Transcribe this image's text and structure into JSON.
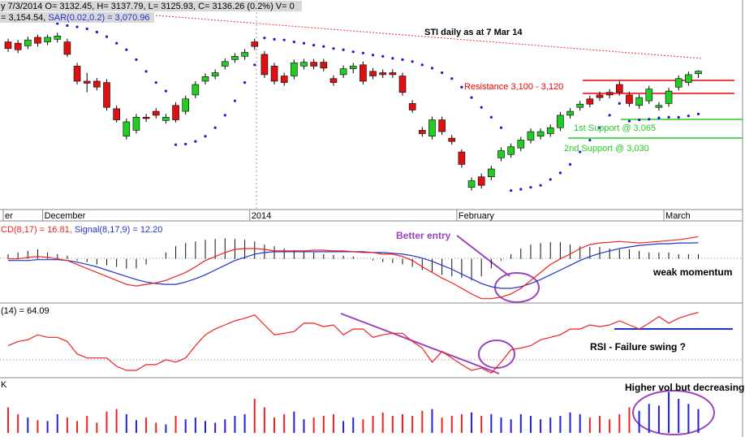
{
  "chart_data": {
    "type": "candlestick",
    "header": {
      "quote": "y 7/3/2014 O= 3132.45, H= 3137.79, L= 3125.93, C= 3136.26 (0.2%) V= 0",
      "ma": "= 3,154.54, ",
      "sar": "SAR(0.02,0.2) = 3,070.96"
    },
    "title": "STI daily as at 7 Mar 14",
    "annotations": {
      "resistance": "Resistance 3,100 - 3,120",
      "support1": "1st Support @ 3,065",
      "support2": "2nd Support @ 3,030",
      "better_entry": "Better entry",
      "weak_momentum": "weak momentum",
      "rsi_note": "RSI - Failure swing ?",
      "volume_note": "Higher vol but decreasing"
    },
    "categories": [
      "er",
      null,
      null,
      null,
      "December",
      null,
      null,
      null,
      null,
      null,
      null,
      null,
      null,
      null,
      null,
      null,
      null,
      null,
      null,
      null,
      null,
      null,
      null,
      null,
      null,
      "2014",
      null,
      null,
      null,
      null,
      null,
      null,
      null,
      null,
      null,
      null,
      null,
      null,
      null,
      null,
      null,
      null,
      null,
      null,
      null,
      null,
      "February",
      null,
      null,
      null,
      null,
      null,
      null,
      null,
      null,
      null,
      null,
      null,
      null,
      null,
      null,
      null,
      null,
      null,
      null,
      null,
      null,
      "March",
      null,
      null,
      null
    ],
    "open": [
      3181,
      3179,
      3175,
      3188,
      3181,
      3185,
      3181,
      3144,
      3121,
      3121,
      3119,
      3079,
      3037,
      3046,
      3066,
      3075,
      3061,
      3084,
      3075,
      3100,
      3121,
      3129,
      3144,
      3154,
      3159,
      3181,
      3162,
      3144,
      3129,
      3129,
      3144,
      3150,
      3150,
      3125,
      3131,
      3140,
      3146,
      3136,
      3134,
      3134,
      3129,
      3087,
      3046,
      3037,
      3062,
      3034,
      3013,
      2959,
      2975,
      2975,
      3004,
      3009,
      3019,
      3031,
      3037,
      3041,
      3050,
      3069,
      3081,
      3094,
      3100,
      3104,
      3116,
      3100,
      3084,
      3091,
      3081,
      3087,
      3112,
      3119,
      3132.45
    ],
    "high": [
      3186,
      3184,
      3189,
      3192,
      3192,
      3195,
      3186,
      3149,
      3134,
      3126,
      3124,
      3084,
      3064,
      3071,
      3071,
      3080,
      3071,
      3089,
      3099,
      3121,
      3133,
      3139,
      3156,
      3164,
      3170,
      3186,
      3167,
      3149,
      3134,
      3154,
      3155,
      3155,
      3155,
      3130,
      3145,
      3149,
      3151,
      3141,
      3139,
      3139,
      3134,
      3092,
      3051,
      3067,
      3067,
      3039,
      3017,
      2974,
      2980,
      2992,
      3020,
      3026,
      3036,
      3049,
      3049,
      3055,
      3074,
      3080,
      3091,
      3099,
      3105,
      3109,
      3121,
      3105,
      3101,
      3114,
      3089,
      3111,
      3130,
      3136,
      3137.79
    ],
    "low": [
      3166,
      3164,
      3170,
      3174,
      3176,
      3180,
      3158,
      3116,
      3104,
      3107,
      3076,
      3058,
      3032,
      3041,
      3059,
      3064,
      3056,
      3058,
      3070,
      3095,
      3116,
      3124,
      3139,
      3149,
      3154,
      3169,
      3126,
      3116,
      3114,
      3124,
      3139,
      3139,
      3136,
      3114,
      3126,
      3133,
      3116,
      3124,
      3126,
      3126,
      3099,
      3073,
      3036,
      3032,
      3039,
      3024,
      2989,
      2954,
      2957,
      2970,
      2999,
      3004,
      3014,
      3026,
      3032,
      3036,
      3045,
      3064,
      3076,
      3081,
      3091,
      3095,
      3099,
      3082,
      3079,
      3086,
      3076,
      3082,
      3107,
      3114,
      3125.93
    ],
    "close": [
      3171,
      3169,
      3184,
      3179,
      3188,
      3190,
      3162,
      3121,
      3118,
      3112,
      3081,
      3062,
      3059,
      3066,
      3064,
      3069,
      3066,
      3062,
      3094,
      3116,
      3128,
      3134,
      3151,
      3159,
      3165,
      3174,
      3131,
      3121,
      3119,
      3149,
      3150,
      3144,
      3141,
      3119,
      3140,
      3144,
      3121,
      3129,
      3131,
      3131,
      3104,
      3077,
      3041,
      3062,
      3044,
      3029,
      2994,
      2969,
      2962,
      2987,
      3015,
      3021,
      3031,
      3044,
      3044,
      3050,
      3069,
      3075,
      3086,
      3086,
      3096,
      3100,
      3104,
      3087,
      3096,
      3109,
      3084,
      3106,
      3125,
      3131,
      3136.26
    ],
    "sar": [
      null,
      null,
      null,
      null,
      null,
      3209,
      3206,
      3204,
      3201,
      3196,
      3189,
      3179,
      3169,
      3154,
      3136,
      3119,
      3106,
      3024,
      3025,
      3029,
      3037,
      3050,
      3069,
      3091,
      3119,
      3146,
      3187,
      3185,
      3184,
      3181,
      3179,
      3176,
      3174,
      3171,
      3169,
      3166,
      3164,
      3161,
      3159,
      3156,
      3154,
      3151,
      3146,
      3141,
      3134,
      3125,
      3112,
      3096,
      3081,
      3066,
      3050,
      2954,
      2956,
      2959,
      2962,
      2971,
      2981,
      2994,
      3013,
      3031,
      3050,
      3069,
      3087,
      3060,
      3062,
      3063,
      3065,
      3066,
      3066,
      3068,
      3070.96
    ],
    "up_color": "#22cc22",
    "down_color": "#dd1111",
    "sar_color": "#1a1acc",
    "ylim": [
      2925,
      3245
    ],
    "macd": {
      "header": "CD(8,17) = 16.81, ",
      "signal_header": "Signal(8,17,9) = 12.20",
      "values": [
        0,
        0,
        1.2,
        1.8,
        1.2,
        0,
        -1.2,
        -4.2,
        -7.2,
        -10.2,
        -13.2,
        -16.2,
        -19.2,
        -20.4,
        -19.2,
        -18,
        -16.2,
        -13.2,
        -10.2,
        -6,
        -1.2,
        1.8,
        4.8,
        7.2,
        7.8,
        7.8,
        7.2,
        6,
        6,
        6,
        6,
        6.6,
        6.6,
        6,
        6,
        5.4,
        4.8,
        4.8,
        3.6,
        3.6,
        1.8,
        -1.2,
        -6,
        -10.2,
        -14.4,
        -18,
        -22.2,
        -26.4,
        -30,
        -30,
        -28.8,
        -26.4,
        -22.2,
        -16.2,
        -10.2,
        -4.2,
        0,
        3.6,
        7.8,
        10.8,
        12,
        12.6,
        13.2,
        12.6,
        12,
        12.6,
        13.2,
        13.8,
        14.4,
        15.6,
        16.81
      ],
      "signal": [
        -1.2,
        -1.2,
        -1.2,
        -0.6,
        -0.6,
        -0.6,
        -1.2,
        -2.4,
        -4.2,
        -6,
        -8.4,
        -10.8,
        -13.2,
        -15.6,
        -17.4,
        -18.6,
        -19.2,
        -19.2,
        -17.4,
        -15,
        -12,
        -8.4,
        -4.8,
        -1.2,
        1.2,
        3.6,
        4.8,
        5.4,
        5.4,
        5.4,
        5.4,
        5.4,
        5.4,
        5.4,
        5.4,
        5.4,
        5.4,
        4.8,
        4.8,
        4.2,
        3.6,
        2.4,
        0.6,
        -1.8,
        -4.8,
        -7.8,
        -11.4,
        -15,
        -18.6,
        -21,
        -22.2,
        -22.2,
        -21,
        -18.6,
        -15.6,
        -12,
        -8.4,
        -4.8,
        -1.2,
        1.8,
        4.2,
        6,
        7.8,
        9,
        10.2,
        10.8,
        11.4,
        11.4,
        12,
        12,
        12.2
      ],
      "histogram": [
        3.6,
        4.8,
        6,
        7.2,
        4.8,
        3.6,
        2.4,
        -1.2,
        -2.4,
        -4.2,
        -4.8,
        -6,
        -7.2,
        -7.2,
        -4.2,
        0,
        4.8,
        9.6,
        12,
        13.2,
        14.4,
        15,
        15.6,
        15,
        14.4,
        13.2,
        10.8,
        9.6,
        7.8,
        6.6,
        6,
        4.8,
        3.6,
        3,
        2.4,
        1.8,
        0,
        -1.2,
        -2.4,
        -3,
        -4.2,
        -6,
        -8.4,
        -10.2,
        -12,
        -13.2,
        -14.4,
        -16.2,
        -13.2,
        -7.2,
        -1.2,
        3.6,
        7.8,
        10.8,
        12,
        12.6,
        12.6,
        10.8,
        9.6,
        9,
        9,
        7.8,
        7.2,
        7.2,
        6,
        4.8,
        4.8,
        4.8,
        3.6,
        3.6,
        3.6
      ],
      "color": "#ee2222",
      "signal_color": "#2233cc",
      "histogram_color": "#111111",
      "ylim": [
        -32,
        28
      ]
    },
    "rsi": {
      "header": "(14) = 64.09",
      "values": [
        40.5,
        43.5,
        44.7,
        48.2,
        46.4,
        46.4,
        43.5,
        34.7,
        31.8,
        31.8,
        31.8,
        25.9,
        23,
        23,
        27.1,
        27.1,
        30.6,
        28.8,
        31.8,
        40.5,
        48.2,
        52.3,
        55.2,
        58.1,
        59.9,
        62.2,
        55.2,
        48.2,
        49.3,
        50.5,
        56.4,
        56.4,
        54,
        55.2,
        48.2,
        52.3,
        52.3,
        46.4,
        48.2,
        49.3,
        49.3,
        43.5,
        38.8,
        28.8,
        36.4,
        31.8,
        27.1,
        23,
        24.7,
        21.2,
        28.8,
        37.6,
        38.8,
        40.5,
        44.7,
        46.4,
        48.2,
        52.3,
        52.3,
        55.2,
        54,
        55.2,
        58.1,
        55.2,
        52.3,
        56.4,
        61.1,
        56.4,
        59.9,
        62.2,
        64.09
      ],
      "color": "#ee2222",
      "ylim": [
        19,
        69
      ]
    },
    "volume": {
      "header": "K",
      "values": [
        30,
        22,
        18,
        15,
        14,
        22,
        18,
        14,
        20,
        12,
        25,
        28,
        22,
        15,
        18,
        12,
        10,
        20,
        16,
        18,
        14,
        12,
        16,
        20,
        22,
        40,
        30,
        18,
        22,
        25,
        16,
        18,
        20,
        22,
        14,
        18,
        16,
        20,
        24,
        20,
        22,
        20,
        26,
        28,
        18,
        20,
        22,
        24,
        20,
        22,
        18,
        16,
        22,
        20,
        16,
        18,
        20,
        24,
        22,
        18,
        20,
        16,
        22,
        30,
        26,
        34,
        32,
        48,
        40,
        34,
        28
      ],
      "up_color": "#2222dd",
      "down_color": "#ee2222",
      "ylim": [
        0,
        60
      ]
    }
  }
}
